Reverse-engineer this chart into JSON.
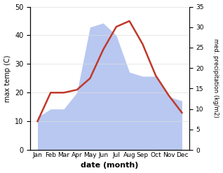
{
  "months": [
    "Jan",
    "Feb",
    "Mar",
    "Apr",
    "May",
    "Jun",
    "Jul",
    "Aug",
    "Sep",
    "Oct",
    "Nov",
    "Dec"
  ],
  "temp": [
    10,
    20,
    20,
    21,
    25,
    35,
    43,
    45,
    37,
    26,
    19,
    13
  ],
  "precip": [
    8,
    10,
    10,
    14,
    30,
    31,
    28,
    19,
    18,
    18,
    13,
    12
  ],
  "temp_color": "#c0392b",
  "precip_fill_color": "#b8c8f0",
  "ylabel_left": "max temp (C)",
  "ylabel_right": "med. precipitation (kg/m2)",
  "xlabel": "date (month)",
  "ylim_left": [
    0,
    50
  ],
  "ylim_right": [
    0,
    35
  ],
  "yticks_left": [
    0,
    10,
    20,
    30,
    40,
    50
  ],
  "yticks_right": [
    0,
    5,
    10,
    15,
    20,
    25,
    30,
    35
  ],
  "background_color": "#ffffff"
}
